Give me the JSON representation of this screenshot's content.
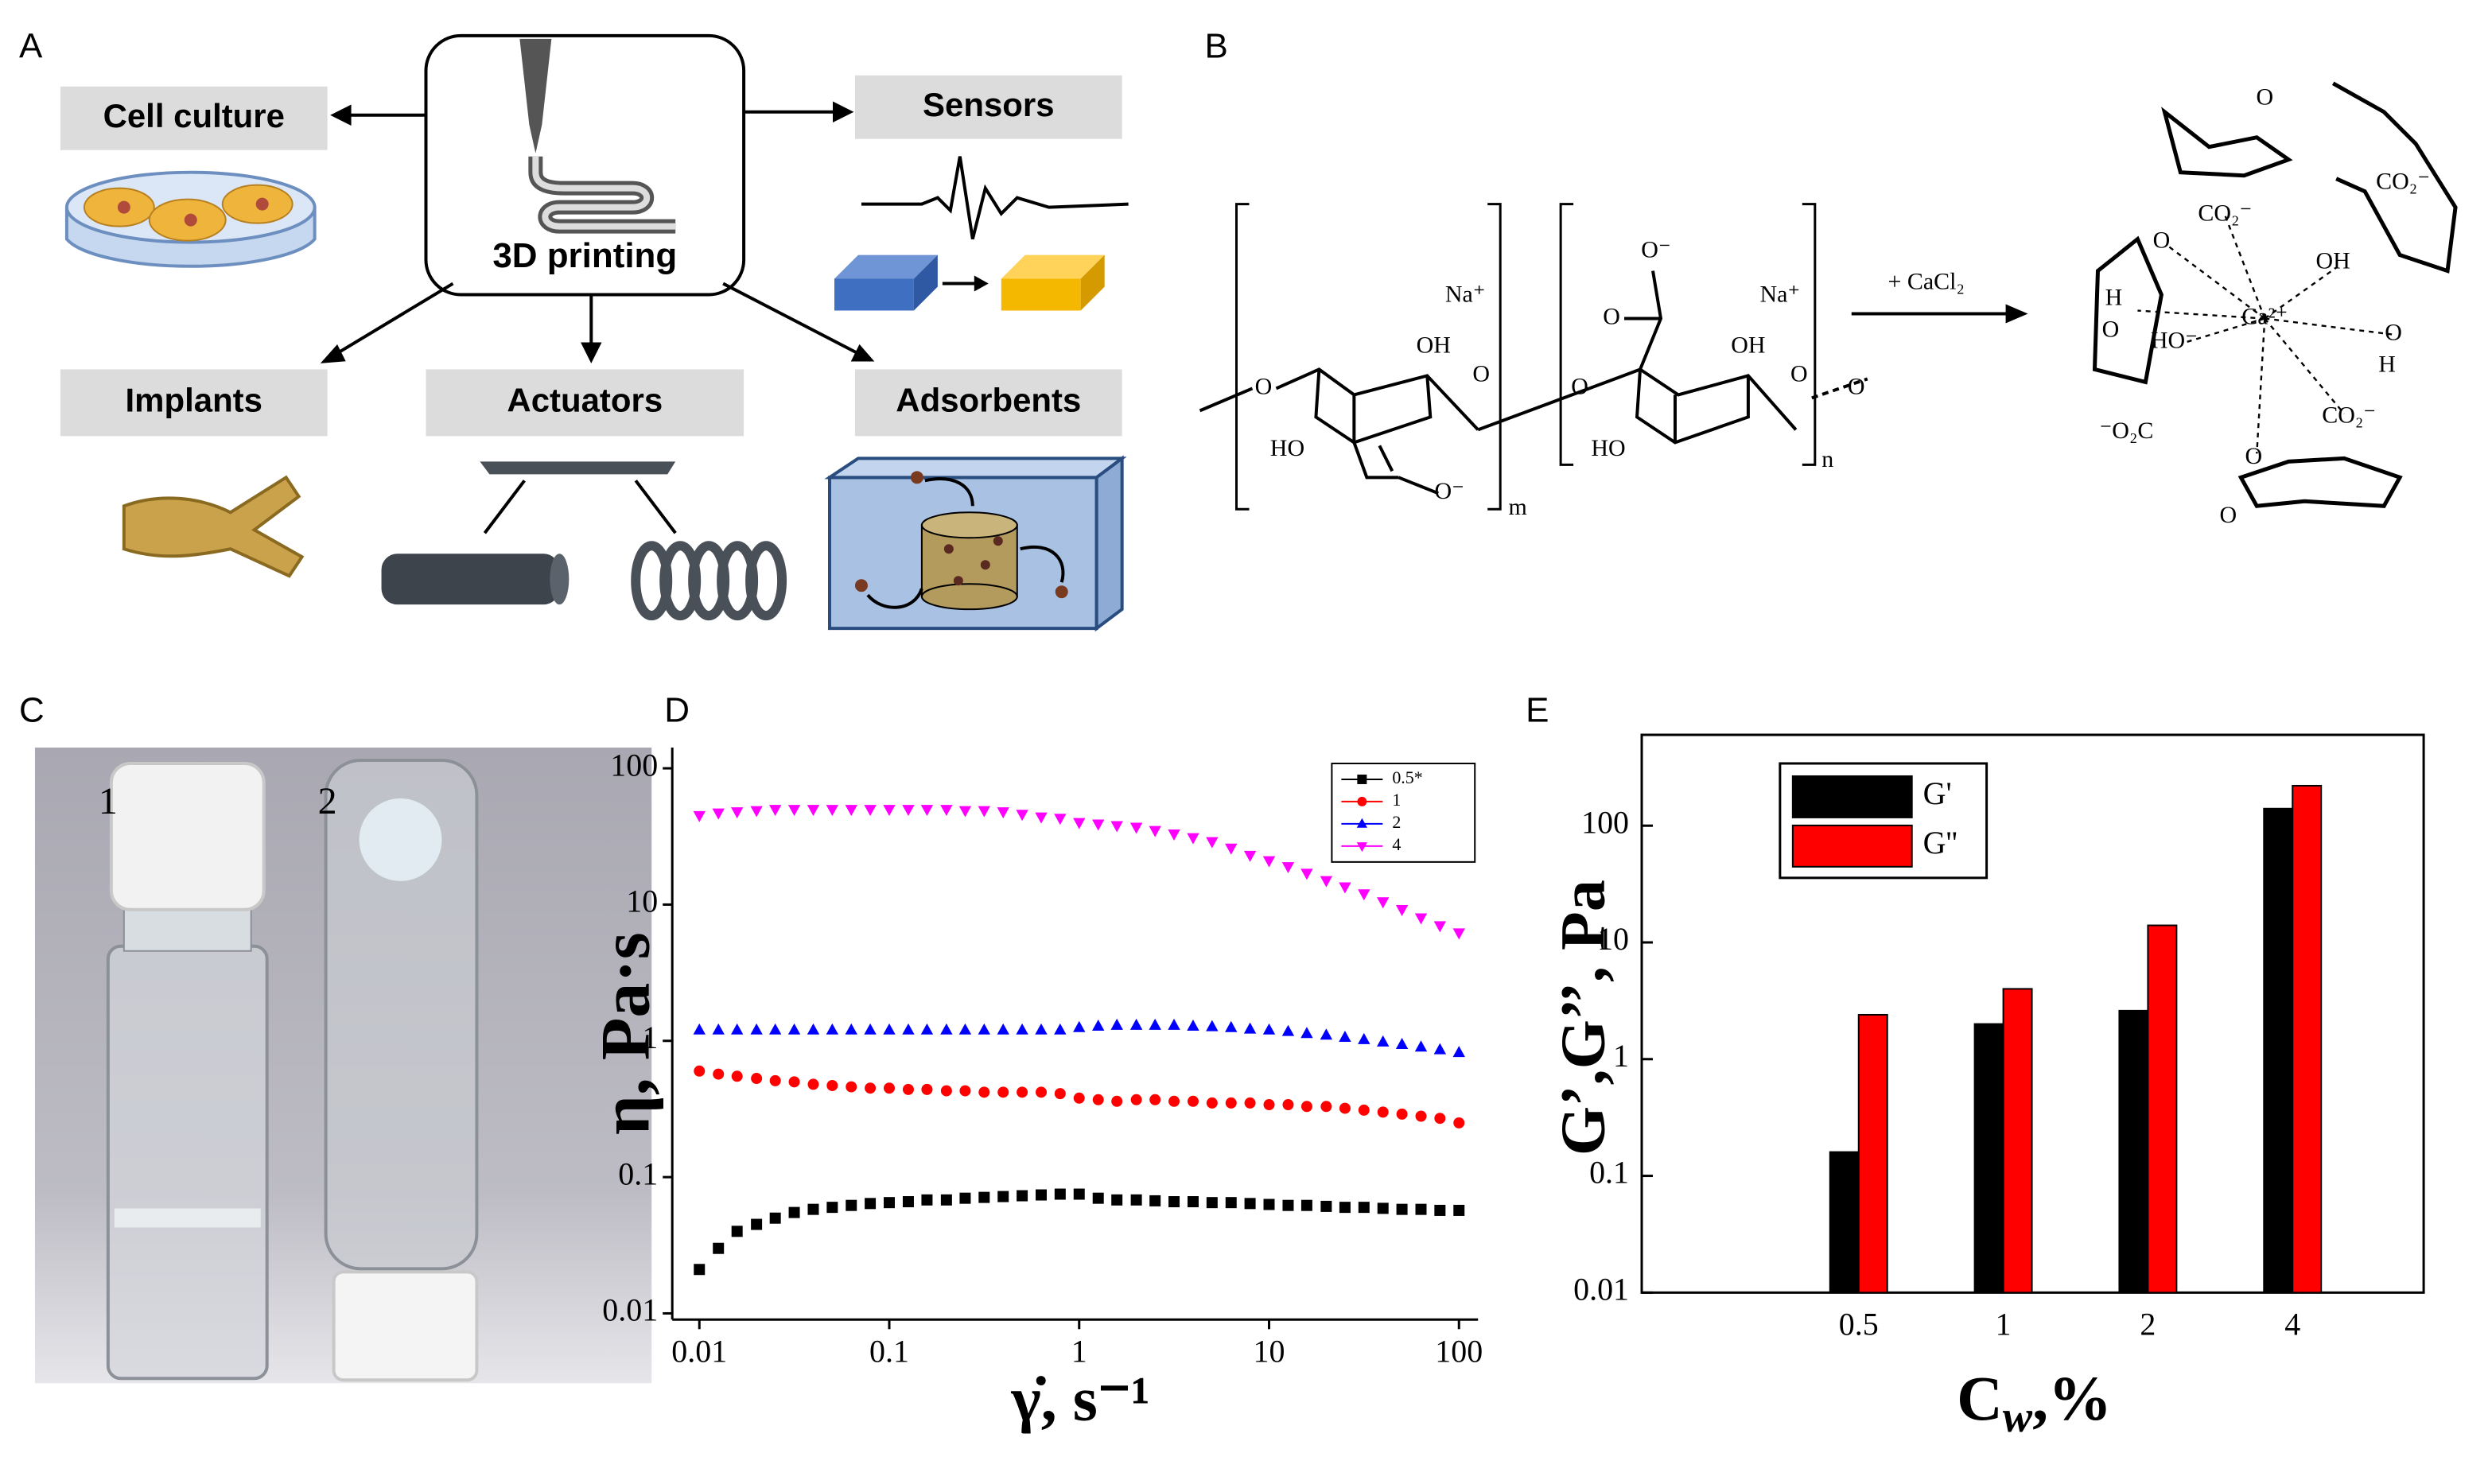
{
  "panels": {
    "A": {
      "label": "A",
      "hub": "3D printing",
      "applications": [
        "Cell culture",
        "Sensors",
        "Implants",
        "Actuators",
        "Adsorbents"
      ]
    },
    "B": {
      "label": "B",
      "reagent": "+ CaCl₂",
      "texts": [
        "Na⁺",
        "OH",
        "O",
        "O",
        "HO",
        "O⁻",
        "m",
        "O⁻",
        "O",
        "Na⁺",
        "OH",
        "O",
        "O",
        "HO",
        "n",
        "O",
        "Ca²⁺",
        "OH",
        "HO⁻",
        "H",
        "O",
        "CO₂⁻",
        "CO₂⁻",
        "⁻O₂C",
        "CO₂⁻",
        "O",
        "O",
        "O",
        "O",
        "H",
        "O"
      ]
    },
    "C": {
      "label": "C",
      "samples": [
        "1",
        "2"
      ]
    }
  },
  "chart_data": [
    {
      "panel": "D",
      "type": "scatter",
      "xlabel": "γ̇, s⁻¹",
      "ylabel": "η, Pa·s",
      "xscale": "log",
      "yscale": "log",
      "xlim": [
        0.0072,
        126
      ],
      "ylim": [
        0.009,
        142
      ],
      "xticks": [
        0.01,
        0.1,
        1,
        10,
        100
      ],
      "yticks": [
        0.01,
        0.1,
        1,
        10,
        100
      ],
      "legend": "upper right",
      "x": [
        0.01,
        0.0126,
        0.0158,
        0.02,
        0.0251,
        0.0316,
        0.0398,
        0.0501,
        0.0631,
        0.0794,
        0.1,
        0.126,
        0.158,
        0.2,
        0.251,
        0.316,
        0.398,
        0.501,
        0.631,
        0.794,
        1,
        1.26,
        1.58,
        2,
        2.51,
        3.16,
        3.98,
        5.01,
        6.31,
        7.94,
        10,
        12.6,
        15.8,
        20,
        25.1,
        31.6,
        39.8,
        50.1,
        63.1,
        79.4,
        100
      ],
      "series": [
        {
          "name": "0.5*",
          "color": "#000000",
          "marker": "square",
          "values": [
            0.021,
            0.03,
            0.04,
            0.045,
            0.05,
            0.055,
            0.058,
            0.06,
            0.062,
            0.064,
            0.065,
            0.066,
            0.068,
            0.068,
            0.07,
            0.071,
            0.072,
            0.073,
            0.074,
            0.075,
            0.075,
            0.07,
            0.068,
            0.068,
            0.067,
            0.066,
            0.066,
            0.065,
            0.065,
            0.064,
            0.063,
            0.062,
            0.062,
            0.061,
            0.06,
            0.06,
            0.059,
            0.058,
            0.058,
            0.057,
            0.057
          ]
        },
        {
          "name": "1",
          "color": "#ff0000",
          "marker": "circle",
          "values": [
            0.6,
            0.57,
            0.55,
            0.53,
            0.51,
            0.5,
            0.48,
            0.47,
            0.46,
            0.45,
            0.45,
            0.44,
            0.44,
            0.43,
            0.43,
            0.42,
            0.42,
            0.42,
            0.42,
            0.41,
            0.38,
            0.37,
            0.36,
            0.37,
            0.37,
            0.36,
            0.36,
            0.35,
            0.35,
            0.35,
            0.34,
            0.34,
            0.33,
            0.33,
            0.32,
            0.31,
            0.3,
            0.29,
            0.28,
            0.27,
            0.25
          ]
        },
        {
          "name": "2",
          "color": "#0000ff",
          "marker": "triangle-up",
          "values": [
            1.2,
            1.2,
            1.2,
            1.2,
            1.2,
            1.2,
            1.2,
            1.2,
            1.2,
            1.2,
            1.2,
            1.2,
            1.2,
            1.2,
            1.2,
            1.2,
            1.2,
            1.2,
            1.2,
            1.2,
            1.25,
            1.28,
            1.3,
            1.3,
            1.3,
            1.3,
            1.28,
            1.27,
            1.25,
            1.22,
            1.2,
            1.17,
            1.13,
            1.1,
            1.06,
            1.02,
            0.98,
            0.94,
            0.9,
            0.86,
            0.82
          ]
        },
        {
          "name": "4",
          "color": "#ff00ff",
          "marker": "triangle-down",
          "values": [
            45,
            47,
            48,
            49,
            50,
            50,
            50,
            50,
            50,
            50,
            50,
            50,
            50,
            50,
            49,
            49,
            48,
            46,
            44,
            43,
            40,
            39,
            38,
            37,
            35,
            33,
            31,
            29,
            26,
            23,
            21,
            19,
            17,
            15,
            13.5,
            12,
            10.5,
            9.2,
            8,
            7,
            6.2
          ]
        }
      ]
    },
    {
      "panel": "E",
      "type": "bar",
      "xlabel": [
        "C",
        "w",
        ",%"
      ],
      "ylabel": "G’,G’’, Pa",
      "yscale": "log",
      "ylim": [
        0.01,
        600
      ],
      "yticks": [
        0.01,
        0.1,
        1,
        10,
        100
      ],
      "legend": "upper left",
      "categories": [
        "0.5",
        "1",
        "2",
        "4"
      ],
      "series": [
        {
          "name": "G'",
          "color": "#000000",
          "values": [
            0.16,
            2,
            2.6,
            140
          ]
        },
        {
          "name": "G''",
          "color": "#ff0000",
          "values": [
            2.4,
            4,
            14,
            220
          ]
        }
      ]
    }
  ]
}
